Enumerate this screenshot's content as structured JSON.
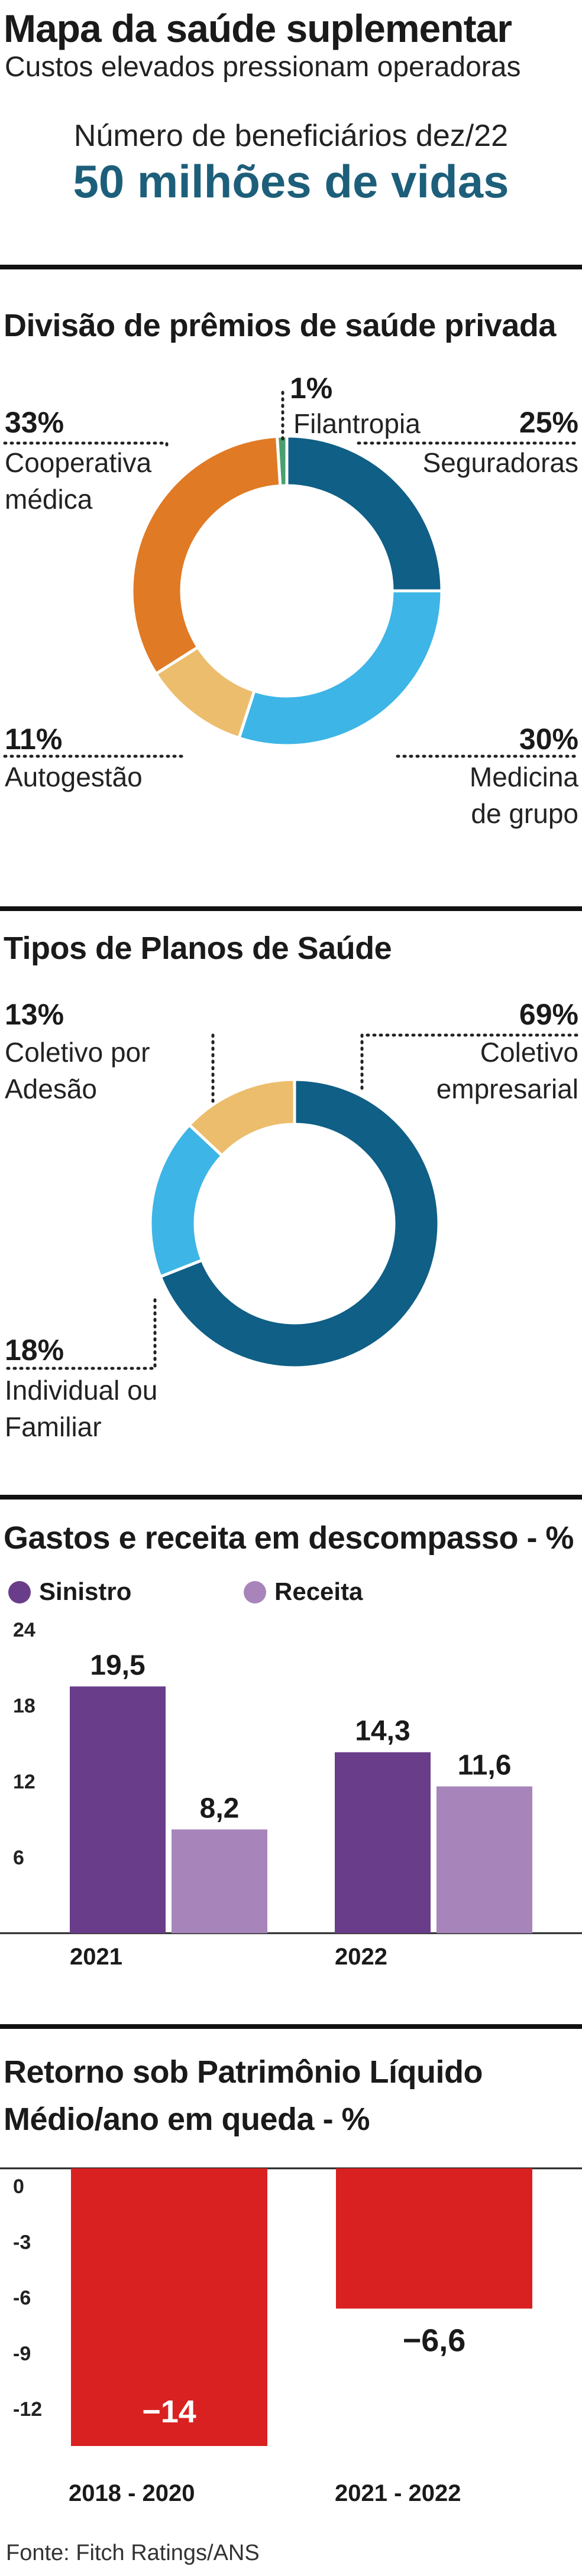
{
  "header": {
    "title": "Mapa da saúde suplementar",
    "subtitle": "Custos elevados pressionam operadoras",
    "beneficiaries_label": "Número de beneficiários dez/22",
    "beneficiaries_value": "50 milhões de vidas"
  },
  "colors": {
    "dark_teal": "#0f5f86",
    "light_blue": "#3db5e6",
    "tan": "#ecbd6c",
    "orange": "#e07a25",
    "green": "#4a9f6e",
    "sinistro": "#6a3d8a",
    "receita": "#a785bb",
    "red": "#d92121"
  },
  "chart_data": [
    {
      "type": "pie",
      "title": "Divisão de prêmios de saúde privada",
      "slices": [
        {
          "label": "Seguradoras",
          "value": 25,
          "pct_label": "25%",
          "color": "#0f5f86"
        },
        {
          "label": "Medicina de grupo",
          "value": 30,
          "pct_label": "30%",
          "color": "#3db5e6"
        },
        {
          "label": "Autogestão",
          "value": 11,
          "pct_label": "11%",
          "color": "#ecbd6c"
        },
        {
          "label": "Cooperativa médica",
          "value": 33,
          "pct_label": "33%",
          "color": "#e07a25"
        },
        {
          "label": "Filantropia",
          "value": 1,
          "pct_label": "1%",
          "color": "#4a9f6e"
        }
      ]
    },
    {
      "type": "pie",
      "title": "Tipos de Planos de Saúde",
      "slices": [
        {
          "label": "Coletivo empresarial",
          "value": 69,
          "pct_label": "69%",
          "color": "#0f5f86"
        },
        {
          "label": "Individual ou Familiar",
          "value": 18,
          "pct_label": "18%",
          "color": "#3db5e6"
        },
        {
          "label": "Coletivo por Adesão",
          "value": 13,
          "pct_label": "13%",
          "color": "#ecbd6c"
        }
      ]
    },
    {
      "type": "bar",
      "title": "Gastos e receita em descompasso - %",
      "categories": [
        "2021",
        "2022"
      ],
      "series": [
        {
          "name": "Sinistro",
          "values": [
            19.5,
            14.3
          ],
          "labels": [
            "19,5",
            "14,3"
          ],
          "color": "#6a3d8a"
        },
        {
          "name": "Receita",
          "values": [
            8.2,
            11.6
          ],
          "labels": [
            "8,2",
            "11,6"
          ],
          "color": "#a785bb"
        }
      ],
      "yticks": [
        "24",
        "18",
        "12",
        "6"
      ],
      "ytick_values": [
        24,
        18,
        12,
        6
      ],
      "ylim": [
        0,
        24
      ],
      "legend": "top-left"
    },
    {
      "type": "bar",
      "title_line1": "Retorno sob Patrimônio Líquido",
      "title_line2": "Médio/ano em queda - %",
      "categories": [
        "2018 - 2020",
        "2021 - 2022"
      ],
      "values": [
        -14,
        -6.6
      ],
      "labels": [
        "−14",
        "−6,6"
      ],
      "yticks": [
        "0",
        "-3",
        "-6",
        "-9",
        "-12"
      ],
      "ytick_values": [
        0,
        -3,
        -6,
        -9,
        -12
      ],
      "ylim": [
        -14,
        0
      ],
      "color": "#d92121"
    }
  ],
  "source": "Fonte: Fitch Ratings/ANS"
}
